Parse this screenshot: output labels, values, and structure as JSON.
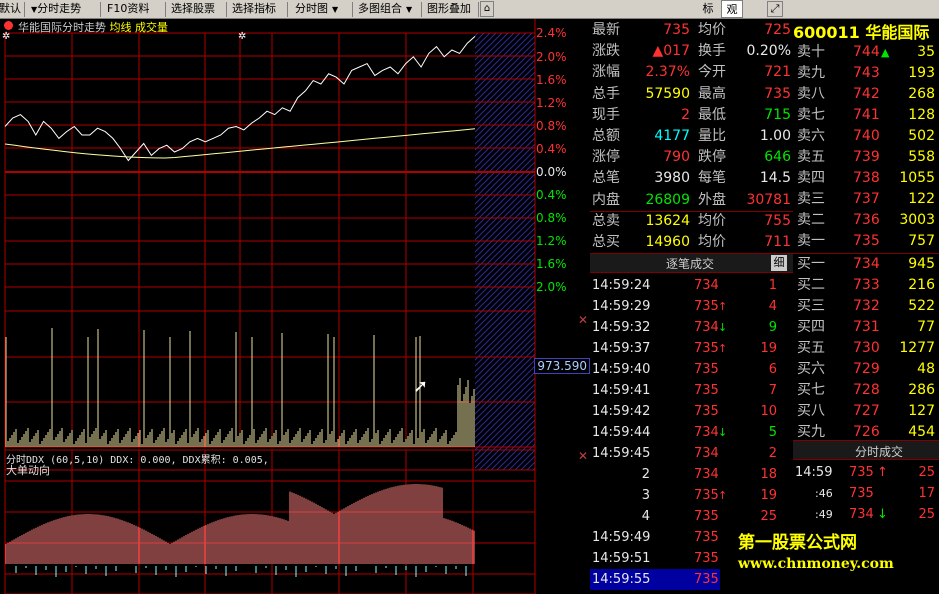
{
  "toolbar": {
    "items": [
      {
        "label": "默认",
        "caret": true
      },
      {
        "label": "分时走势",
        "caret": true
      },
      {
        "label": "F10资料"
      },
      {
        "label": "选择股票"
      },
      {
        "label": "选择指标"
      },
      {
        "label": "分时图",
        "caret": true
      },
      {
        "label": "多图组合",
        "caret": true
      },
      {
        "label": "图形叠加"
      }
    ],
    "right_tabs": [
      "标",
      "观"
    ]
  },
  "chart": {
    "title": "华能国际分时走势",
    "title_legend_avg": "均线",
    "title_legend_vol": "成交量",
    "pct_up": [
      "2.4%",
      "2.0%",
      "1.6%",
      "1.2%",
      "0.8%",
      "0.4%"
    ],
    "pct_zero": "0.0%",
    "pct_down": [
      "0.4%",
      "0.8%",
      "1.2%",
      "1.6%",
      "2.0%"
    ],
    "volume_max_label": "973.590",
    "ddx_caption": "分时DDX (60,5,10)  DDX: 0.000, DDX累积: 0.005,",
    "big_order_caption": "大单动向",
    "watermark_line1": "第一股票公式网",
    "watermark_line2": "www.chnmoney.com"
  },
  "chart_data": {
    "type": "line",
    "price_path_y": [
      0.55,
      0.5,
      0.48,
      0.52,
      0.6,
      0.52,
      0.56,
      0.62,
      0.58,
      0.55,
      0.6,
      0.6,
      0.56,
      0.58,
      0.62,
      0.68,
      0.75,
      0.7,
      0.65,
      0.72,
      0.68,
      0.66,
      0.7,
      0.68,
      0.64,
      0.62,
      0.64,
      0.62,
      0.6,
      0.56,
      0.55,
      0.57,
      0.53,
      0.5,
      0.46,
      0.48,
      0.44,
      0.46,
      0.38,
      0.34,
      0.28,
      0.3,
      0.24,
      0.26,
      0.3,
      0.22,
      0.2,
      0.18,
      0.25,
      0.22,
      0.2,
      0.24,
      0.18,
      0.14,
      0.2,
      0.12,
      0.08,
      0.14,
      0.1,
      0.12,
      0.06,
      0.02
    ]
  },
  "quote": {
    "rows": [
      {
        "l1": "最新",
        "v1": "735",
        "c1": "red",
        "l2": "均价",
        "v2": "725",
        "c2": "red"
      },
      {
        "l1": "涨跌",
        "v1": "▲017",
        "c1": "red",
        "l2": "换手",
        "v2": "0.20%",
        "c2": "wht"
      },
      {
        "l1": "涨幅",
        "v1": "2.37%",
        "c1": "red",
        "l2": "今开",
        "v2": "721",
        "c2": "red"
      },
      {
        "l1": "总手",
        "v1": "57590",
        "c1": "yel",
        "l2": "最高",
        "v2": "735",
        "c2": "red"
      },
      {
        "l1": "现手",
        "v1": "2",
        "c1": "red",
        "l2": "最低",
        "v2": "715",
        "c2": "grn"
      },
      {
        "l1": "总额",
        "v1": "4177",
        "c1": "cyan",
        "l2": "量比",
        "v2": "1.00",
        "c2": "wht"
      },
      {
        "l1": "涨停",
        "v1": "790",
        "c1": "red",
        "l2": "跌停",
        "v2": "646",
        "c2": "grn"
      },
      {
        "l1": "总笔",
        "v1": "3980",
        "c1": "wht",
        "l2": "每笔",
        "v2": "14.5",
        "c2": "wht"
      },
      {
        "l1": "内盘",
        "v1": "26809",
        "c1": "grn",
        "l2": "外盘",
        "v2": "30781",
        "c2": "red"
      },
      {
        "l1": "总卖",
        "v1": "13624",
        "c1": "yel",
        "l2": "均价",
        "v2": "755",
        "c2": "red"
      },
      {
        "l1": "总买",
        "v1": "14960",
        "c1": "yel",
        "l2": "均价",
        "v2": "711",
        "c2": "red"
      }
    ]
  },
  "ticks": {
    "title": "逐笔成交",
    "detail": "细",
    "rows": [
      {
        "t": "14:59:24",
        "p": "734",
        "a": "",
        "v": "1"
      },
      {
        "t": "14:59:29",
        "p": "735",
        "a": "up",
        "v": "4"
      },
      {
        "t": "14:59:32",
        "p": "734",
        "a": "dn",
        "v": "9"
      },
      {
        "t": "14:59:37",
        "p": "735",
        "a": "up",
        "v": "19"
      },
      {
        "t": "14:59:40",
        "p": "735",
        "a": "",
        "v": "6"
      },
      {
        "t": "14:59:41",
        "p": "735",
        "a": "",
        "v": "7"
      },
      {
        "t": "14:59:42",
        "p": "735",
        "a": "",
        "v": "10"
      },
      {
        "t": "14:59:44",
        "p": "734",
        "a": "dn",
        "v": "5"
      },
      {
        "t": "14:59:45",
        "p": "734",
        "a": "",
        "v": "2"
      },
      {
        "t": "2",
        "p": "734",
        "a": "",
        "v": "18"
      },
      {
        "t": "3",
        "p": "735",
        "a": "up",
        "v": "19"
      },
      {
        "t": "4",
        "p": "735",
        "a": "",
        "v": "25"
      },
      {
        "t": "14:59:49",
        "p": "735",
        "a": "",
        "v": ""
      },
      {
        "t": "14:59:51",
        "p": "735",
        "a": "",
        "v": ""
      },
      {
        "t": "14:59:55",
        "p": "735",
        "a": "",
        "v": ""
      }
    ]
  },
  "book": {
    "code": "600011",
    "name": "华能国际",
    "asks": [
      {
        "l": "卖十",
        "p": "744",
        "a": "up",
        "v": "35"
      },
      {
        "l": "卖九",
        "p": "743",
        "a": "",
        "v": "193"
      },
      {
        "l": "卖八",
        "p": "742",
        "a": "",
        "v": "268"
      },
      {
        "l": "卖七",
        "p": "741",
        "a": "",
        "v": "128"
      },
      {
        "l": "卖六",
        "p": "740",
        "a": "",
        "v": "502"
      },
      {
        "l": "卖五",
        "p": "739",
        "a": "",
        "v": "558"
      },
      {
        "l": "卖四",
        "p": "738",
        "a": "",
        "v": "1055"
      },
      {
        "l": "卖三",
        "p": "737",
        "a": "",
        "v": "122"
      },
      {
        "l": "卖二",
        "p": "736",
        "a": "",
        "v": "3003"
      },
      {
        "l": "卖一",
        "p": "735",
        "a": "",
        "v": "757"
      }
    ],
    "bids": [
      {
        "l": "买一",
        "p": "734",
        "a": "",
        "v": "945"
      },
      {
        "l": "买二",
        "p": "733",
        "a": "",
        "v": "216"
      },
      {
        "l": "买三",
        "p": "732",
        "a": "",
        "v": "522"
      },
      {
        "l": "买四",
        "p": "731",
        "a": "",
        "v": "77"
      },
      {
        "l": "买五",
        "p": "730",
        "a": "",
        "v": "1277"
      },
      {
        "l": "买六",
        "p": "729",
        "a": "",
        "v": "48"
      },
      {
        "l": "买七",
        "p": "728",
        "a": "",
        "v": "286"
      },
      {
        "l": "买八",
        "p": "727",
        "a": "",
        "v": "127"
      },
      {
        "l": "买九",
        "p": "726",
        "a": "",
        "v": "454"
      },
      {
        "l": "买十",
        "p": "725",
        "a": "dn",
        "v": "157"
      }
    ]
  },
  "ticks_small": {
    "title": "分时成交",
    "rows": [
      {
        "t": "14:59",
        "p": "735",
        "a": "up",
        "v": "25"
      },
      {
        "t": ":46",
        "p": "735",
        "a": "",
        "v": "17"
      },
      {
        "t": ":49",
        "p": "734",
        "a": "dn",
        "v": "25"
      }
    ]
  }
}
